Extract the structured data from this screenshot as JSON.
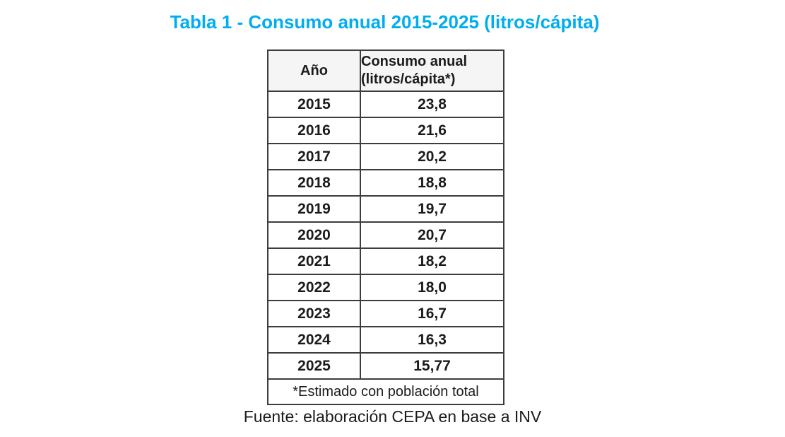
{
  "title": "Tabla 1 - Consumo anual 2015-2025 (litros/cápita)",
  "accent_color": "#00AEEF",
  "table": {
    "headers": {
      "year": "Año",
      "value": "Consumo anual (litros/cápita*)"
    },
    "rows": [
      {
        "year": "2015",
        "value": "23,8"
      },
      {
        "year": "2016",
        "value": "21,6"
      },
      {
        "year": "2017",
        "value": "20,2"
      },
      {
        "year": "2018",
        "value": "18,8"
      },
      {
        "year": "2019",
        "value": "19,7"
      },
      {
        "year": "2020",
        "value": "20,7"
      },
      {
        "year": "2021",
        "value": "18,2"
      },
      {
        "year": "2022",
        "value": "18,0"
      },
      {
        "year": "2023",
        "value": "16,7"
      },
      {
        "year": "2024",
        "value": "16,3"
      },
      {
        "year": "2025",
        "value": "15,77"
      }
    ],
    "footnote": "*Estimado con población total"
  },
  "source": "Fuente: elaboración CEPA en base a INV",
  "chart_data": {
    "type": "table",
    "title": "Tabla 1 - Consumo anual 2015-2025 (litros/cápita)",
    "columns": [
      "Año",
      "Consumo anual (litros/cápita*)"
    ],
    "categories": [
      "2015",
      "2016",
      "2017",
      "2018",
      "2019",
      "2020",
      "2021",
      "2022",
      "2023",
      "2024",
      "2025"
    ],
    "values": [
      23.8,
      21.6,
      20.2,
      18.8,
      19.7,
      20.7,
      18.2,
      18.0,
      16.7,
      16.3,
      15.77
    ],
    "xlabel": "Año",
    "ylabel": "Consumo anual (litros/cápita)",
    "footnote": "*Estimado con población total",
    "source": "Fuente: elaboración CEPA en base a INV"
  }
}
